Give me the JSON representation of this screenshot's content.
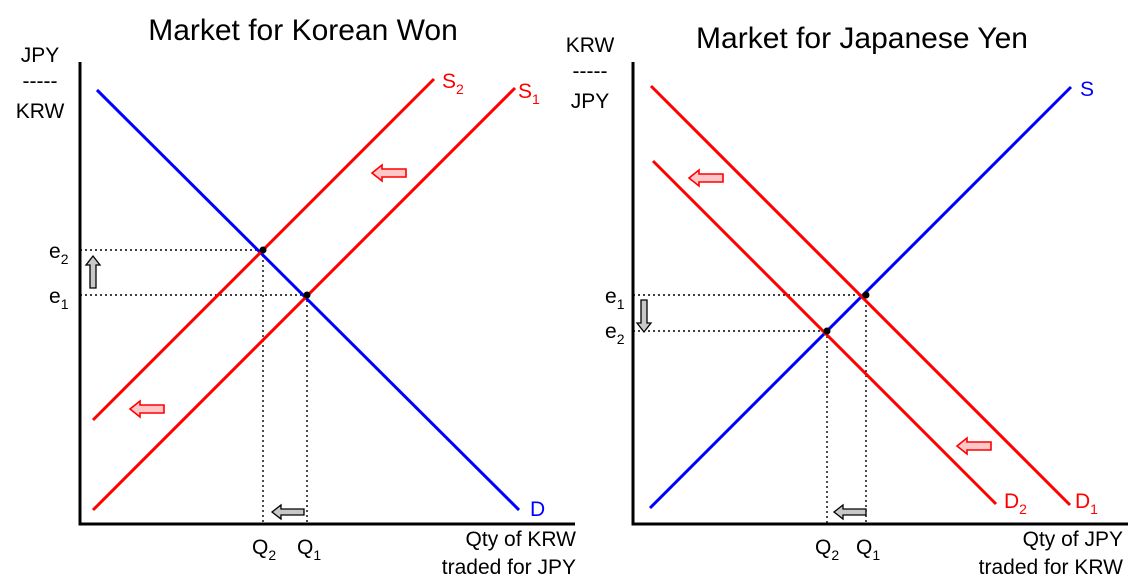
{
  "left_panel": {
    "title": "Market for Korean Won",
    "y_label": {
      "top": "JPY",
      "mid": "-----",
      "bottom": "KRW"
    },
    "x_label": {
      "line1": "Qty of KRW",
      "line2": "traded for JPY"
    },
    "curves": {
      "s2": {
        "base": "S",
        "sub": "2",
        "color": "#ff0000"
      },
      "s1": {
        "base": "S",
        "sub": "1",
        "color": "#ff0000"
      },
      "d": {
        "text": "D",
        "color": "#0000ff"
      }
    },
    "y_ticks": {
      "e2": {
        "base": "e",
        "sub": "2"
      },
      "e1": {
        "base": "e",
        "sub": "1"
      }
    },
    "x_ticks": {
      "q2": {
        "base": "Q",
        "sub": "2"
      },
      "q1": {
        "base": "Q",
        "sub": "1"
      }
    }
  },
  "right_panel": {
    "title": "Market for Japanese Yen",
    "y_label": {
      "top": "KRW",
      "mid": "-----",
      "bottom": "JPY"
    },
    "x_label": {
      "line1": "Qty of JPY",
      "line2": "traded for KRW"
    },
    "curves": {
      "s": {
        "text": "S",
        "color": "#0000ff"
      },
      "d2": {
        "base": "D",
        "sub": "2",
        "color": "#ff0000"
      },
      "d1": {
        "base": "D",
        "sub": "1",
        "color": "#ff0000"
      }
    },
    "y_ticks": {
      "e1": {
        "base": "e",
        "sub": "1"
      },
      "e2": {
        "base": "e",
        "sub": "2"
      }
    },
    "x_ticks": {
      "q2": {
        "base": "Q",
        "sub": "2"
      },
      "q1": {
        "base": "Q",
        "sub": "1"
      }
    }
  },
  "colors": {
    "supply_shift": "#ff0000",
    "demand_line": "#0000ff",
    "arrow_fill_red": "#ffc8c8",
    "arrow_fill_grey": "#c8c8c8"
  },
  "icons": [
    "left-arrow-icon",
    "up-arrow-icon",
    "down-arrow-icon"
  ]
}
